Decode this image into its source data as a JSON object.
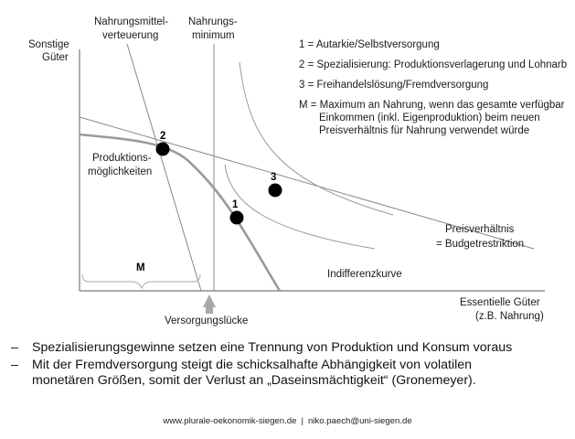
{
  "diagram": {
    "y_axis_label": [
      "Sonstige",
      "Güter"
    ],
    "x_axis_label": [
      "Essentielle Güter",
      "(z.B. Nahrung)"
    ],
    "nahrungsmittelverteuerung": [
      "Nahrungsmittel-",
      "verteuerung"
    ],
    "nahrungsminimum": [
      "Nahrungs-",
      "minimum"
    ],
    "produktionsmoeglichkeiten": [
      "Produktions-",
      "möglichkeiten"
    ],
    "preisverhaeltnis": [
      "Preisverhältnis",
      "= Budgetrestriktion"
    ],
    "indifferenzkurve": "Indifferenzkurve",
    "versorgungsluecke": "Versorgungslücke",
    "m_label": "M",
    "points": [
      "1",
      "2",
      "3"
    ],
    "legend": [
      [
        "1 = Autarkie/Selbstversorgung"
      ],
      [
        "2 = Spezialisierung: Produktionsverlagerung und Lohnarb"
      ],
      [
        "3 = Freihandelslösung/Fremdversorgung"
      ],
      [
        "M = Maximum an Nahrung, wenn das gesamte verfügbar",
        "Einkommen (inkl. Eigenproduktion) beim neuen",
        "Preisverhältnis für Nahrung verwendet würde"
      ]
    ]
  },
  "bullets": [
    "Spezialisierungsgewinne setzen eine Trennung von Produktion und Konsum voraus",
    "Mit der Fremdversorgung steigt die schicksalhafte Abhängigkeit von volatilen\nmonetären Größen, somit der Verlust an „Daseinsmächtigkeit“ (Gronemeyer)."
  ],
  "bullet_marker": "–",
  "footer": {
    "left": "www.plurale-oekonomik-siegen.de",
    "separator": "|",
    "right": "niko.paech@uni-siegen.de"
  }
}
